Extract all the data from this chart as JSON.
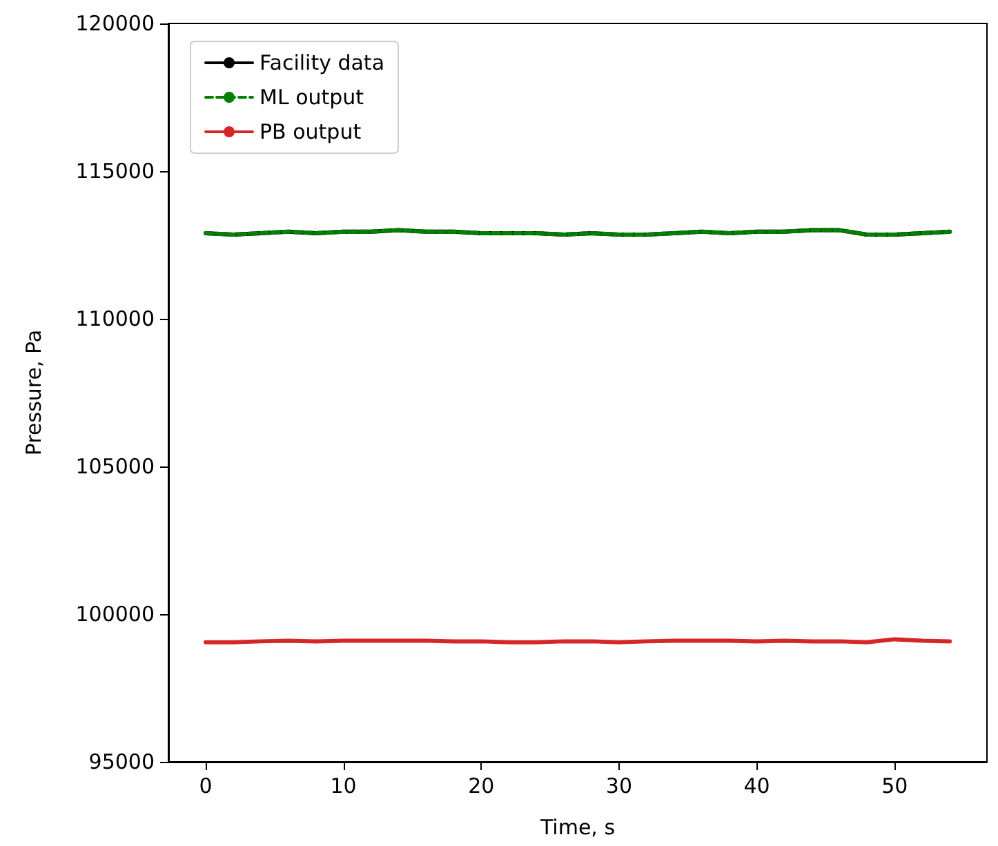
{
  "chart_data": {
    "type": "line",
    "xlabel": "Time, s",
    "ylabel": "Pressure, Pa",
    "x": [
      0,
      2,
      4,
      6,
      8,
      10,
      12,
      14,
      16,
      18,
      20,
      22,
      24,
      26,
      28,
      30,
      32,
      34,
      36,
      38,
      40,
      42,
      44,
      46,
      48,
      50,
      52,
      54
    ],
    "xlim": [
      -2.7,
      56.7
    ],
    "xticks": [
      0,
      10,
      20,
      30,
      40,
      50
    ],
    "ylim": [
      95000,
      120000
    ],
    "yticks": [
      95000,
      100000,
      105000,
      110000,
      115000,
      120000
    ],
    "grid": false,
    "legend": "top left",
    "series": [
      {
        "name": "Facility data",
        "color": "#000000",
        "line_style": "solid",
        "values": [
          112900,
          112850,
          112900,
          112950,
          112900,
          112950,
          112950,
          113000,
          112950,
          112950,
          112900,
          112900,
          112900,
          112850,
          112900,
          112850,
          112850,
          112900,
          112950,
          112900,
          112950,
          112950,
          113000,
          113000,
          112850,
          112850,
          112900,
          112950
        ]
      },
      {
        "name": "ML output",
        "color": "#008000",
        "line_style": "dashed",
        "values": [
          112900,
          112850,
          112900,
          112950,
          112900,
          112950,
          112950,
          113000,
          112950,
          112950,
          112900,
          112900,
          112900,
          112850,
          112900,
          112850,
          112850,
          112900,
          112950,
          112900,
          112950,
          112950,
          113000,
          113000,
          112850,
          112850,
          112900,
          112950
        ]
      },
      {
        "name": "PB output",
        "color": "#d62728",
        "line_style": "solid",
        "values": [
          99050,
          99050,
          99080,
          99100,
          99080,
          99100,
          99100,
          99100,
          99100,
          99080,
          99080,
          99050,
          99050,
          99080,
          99080,
          99050,
          99080,
          99100,
          99100,
          99100,
          99080,
          99100,
          99080,
          99080,
          99050,
          99150,
          99100,
          99080
        ]
      }
    ]
  }
}
